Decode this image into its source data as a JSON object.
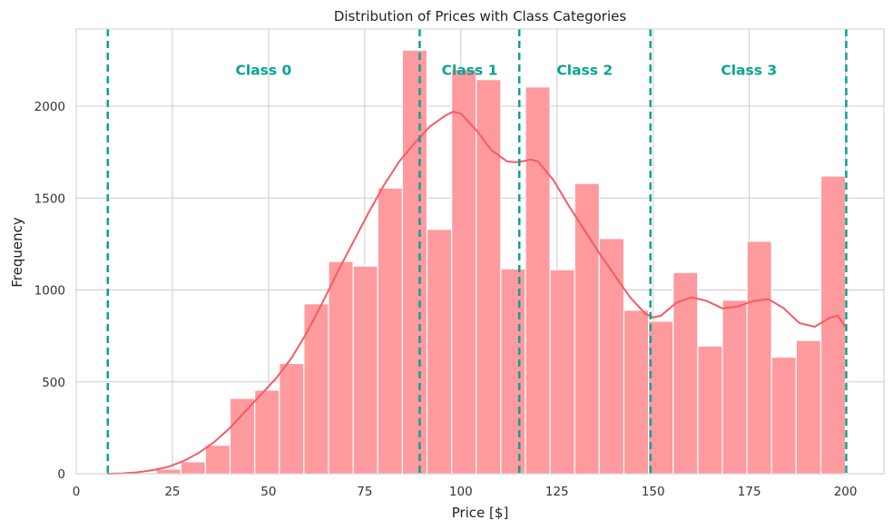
{
  "chart_data": {
    "type": "bar",
    "title": "Distribution of Prices with Class Categories",
    "xlabel": "Price [$]",
    "ylabel": "Frequency",
    "xlim": [
      0,
      210
    ],
    "ylim": [
      0,
      2420
    ],
    "xticks": [
      0,
      25,
      50,
      75,
      100,
      125,
      150,
      175,
      200
    ],
    "yticks": [
      0,
      500,
      1000,
      1500,
      2000
    ],
    "grid": true,
    "bins": [
      {
        "x0": 8.0,
        "x1": 14.4,
        "value": 2
      },
      {
        "x0": 14.4,
        "x1": 20.8,
        "value": 4
      },
      {
        "x0": 20.8,
        "x1": 27.2,
        "value": 25
      },
      {
        "x0": 27.2,
        "x1": 33.6,
        "value": 65
      },
      {
        "x0": 33.6,
        "x1": 40.0,
        "value": 155
      },
      {
        "x0": 40.0,
        "x1": 46.4,
        "value": 410
      },
      {
        "x0": 46.4,
        "x1": 52.8,
        "value": 455
      },
      {
        "x0": 52.8,
        "x1": 59.2,
        "value": 600
      },
      {
        "x0": 59.2,
        "x1": 65.6,
        "value": 925
      },
      {
        "x0": 65.6,
        "x1": 72.0,
        "value": 1155
      },
      {
        "x0": 72.0,
        "x1": 78.4,
        "value": 1130
      },
      {
        "x0": 78.4,
        "x1": 84.8,
        "value": 1555
      },
      {
        "x0": 84.8,
        "x1": 91.2,
        "value": 2305
      },
      {
        "x0": 91.2,
        "x1": 97.6,
        "value": 1330
      },
      {
        "x0": 97.6,
        "x1": 104.0,
        "value": 2200
      },
      {
        "x0": 104.0,
        "x1": 110.4,
        "value": 2145
      },
      {
        "x0": 110.4,
        "x1": 116.8,
        "value": 1115
      },
      {
        "x0": 116.8,
        "x1": 123.2,
        "value": 2105
      },
      {
        "x0": 123.2,
        "x1": 129.6,
        "value": 1110
      },
      {
        "x0": 129.6,
        "x1": 136.0,
        "value": 1580
      },
      {
        "x0": 136.0,
        "x1": 142.4,
        "value": 1280
      },
      {
        "x0": 142.4,
        "x1": 148.8,
        "value": 890
      },
      {
        "x0": 148.8,
        "x1": 155.2,
        "value": 830
      },
      {
        "x0": 155.2,
        "x1": 161.6,
        "value": 1095
      },
      {
        "x0": 161.6,
        "x1": 168.0,
        "value": 695
      },
      {
        "x0": 168.0,
        "x1": 174.4,
        "value": 945
      },
      {
        "x0": 174.4,
        "x1": 180.8,
        "value": 1265
      },
      {
        "x0": 180.8,
        "x1": 187.2,
        "value": 635
      },
      {
        "x0": 187.2,
        "x1": 193.6,
        "value": 725
      },
      {
        "x0": 193.6,
        "x1": 200.0,
        "value": 1620
      }
    ],
    "kde": {
      "x": [
        8,
        12,
        16,
        20,
        24,
        28,
        32,
        36,
        40,
        44,
        48,
        52,
        56,
        60,
        64,
        68,
        72,
        76,
        80,
        84,
        88,
        92,
        96,
        98,
        100,
        104,
        108,
        112,
        114,
        116,
        118,
        120,
        124,
        128,
        132,
        136,
        140,
        144,
        148,
        150,
        152,
        156,
        160,
        164,
        168,
        172,
        176,
        180,
        184,
        188,
        192,
        196,
        198,
        200
      ],
      "y": [
        0,
        2,
        8,
        20,
        38,
        70,
        115,
        175,
        250,
        340,
        430,
        520,
        630,
        770,
        930,
        1100,
        1260,
        1420,
        1570,
        1700,
        1800,
        1890,
        1950,
        1970,
        1960,
        1870,
        1760,
        1700,
        1695,
        1700,
        1710,
        1700,
        1600,
        1460,
        1330,
        1200,
        1080,
        960,
        870,
        850,
        860,
        930,
        960,
        940,
        900,
        910,
        940,
        950,
        900,
        820,
        800,
        850,
        860,
        800
      ]
    },
    "series_colors": {
      "bars": "#ff9a9e",
      "kde": "#f55c63",
      "thresholds": "#0aa392"
    },
    "thresholds": [
      8.2,
      89.3,
      115.2,
      149.3,
      200.2
    ],
    "class_labels": [
      {
        "text": "Class 0",
        "x": 48.7
      },
      {
        "text": "Class 1",
        "x": 102.3
      },
      {
        "text": "Class 2",
        "x": 132.2
      },
      {
        "text": "Class 3",
        "x": 174.9
      }
    ],
    "class_label_y": 2200
  }
}
